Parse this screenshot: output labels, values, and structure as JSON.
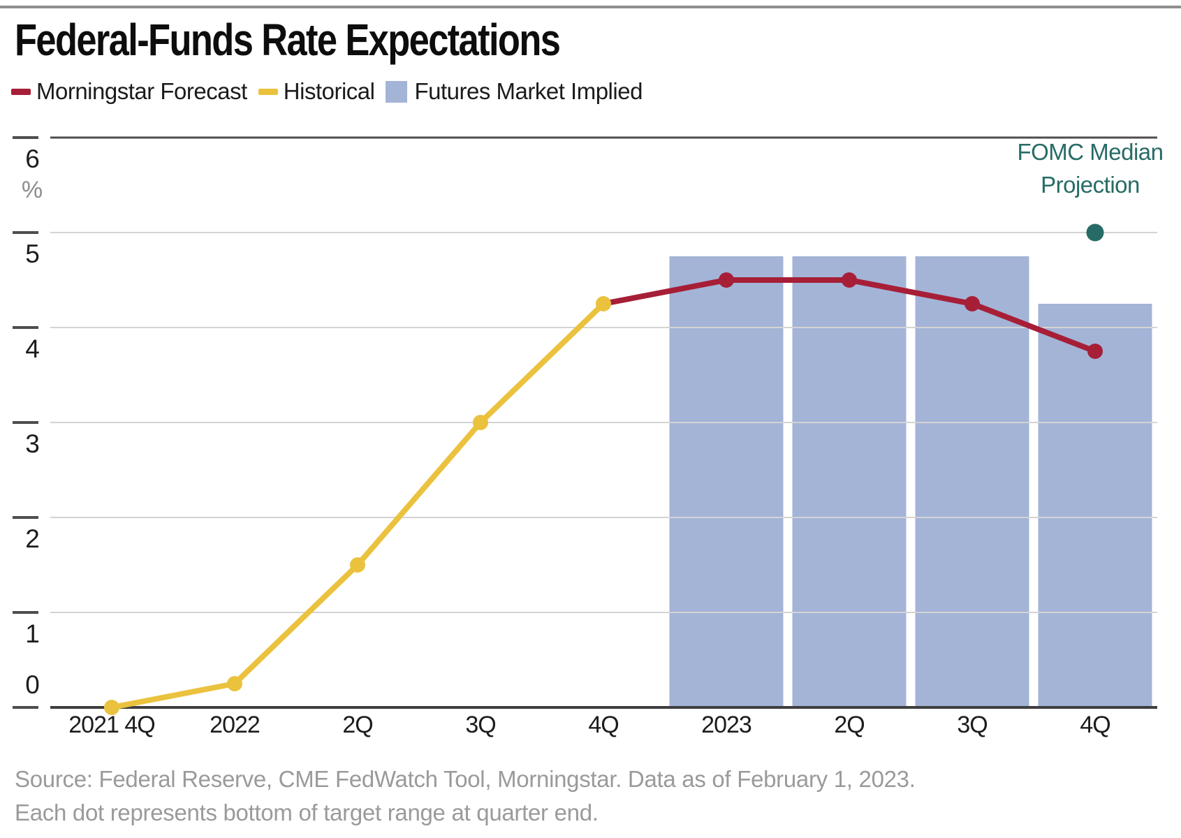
{
  "header": {
    "title": "Federal-Funds Rate Expectations"
  },
  "legend": {
    "items": [
      {
        "label": "Morningstar Forecast",
        "marker": "dash",
        "color": "#A71E37"
      },
      {
        "label": "Historical",
        "marker": "dash",
        "color": "#EBC23E"
      },
      {
        "label": "Futures Market Implied",
        "marker": "square",
        "color": "#A3B4D7"
      }
    ]
  },
  "annotation": {
    "line1": "FOMC Median",
    "line2": "Projection",
    "color": "#276B66"
  },
  "footer": {
    "source_line": "Source: Federal Reserve, CME FedWatch Tool, Morningstar. Data as of February 1, 2023.",
    "note_line": "Each dot represents bottom of target range at quarter end."
  },
  "chart_data": {
    "type": "mixed",
    "title": "Federal-Funds Rate Expectations",
    "categories": [
      "2021 4Q",
      "2022",
      "2Q",
      "3Q",
      "4Q",
      "2023",
      "2Q",
      "3Q",
      "4Q"
    ],
    "series": [
      {
        "name": "Historical",
        "type": "line",
        "color": "#EBC23E",
        "values": [
          0,
          0.25,
          1.5,
          3.0,
          4.25,
          null,
          null,
          null,
          null
        ]
      },
      {
        "name": "Morningstar Forecast",
        "type": "line",
        "color": "#A71E37",
        "values": [
          null,
          null,
          null,
          null,
          4.25,
          4.5,
          4.5,
          4.25,
          3.75
        ]
      },
      {
        "name": "Futures Market Implied",
        "type": "bar",
        "color": "#A3B4D7",
        "values": [
          null,
          null,
          null,
          null,
          null,
          4.75,
          4.75,
          4.75,
          4.25
        ]
      },
      {
        "name": "FOMC Median Projection",
        "type": "scatter",
        "color": "#276B66",
        "values": [
          null,
          null,
          null,
          null,
          null,
          null,
          null,
          null,
          5.0
        ]
      }
    ],
    "xlabel": "",
    "ylabel": "%",
    "ylim": [
      0,
      6
    ],
    "yticks": [
      0,
      1,
      2,
      3,
      4,
      5,
      6
    ],
    "grid": true,
    "legend_position": "top"
  }
}
